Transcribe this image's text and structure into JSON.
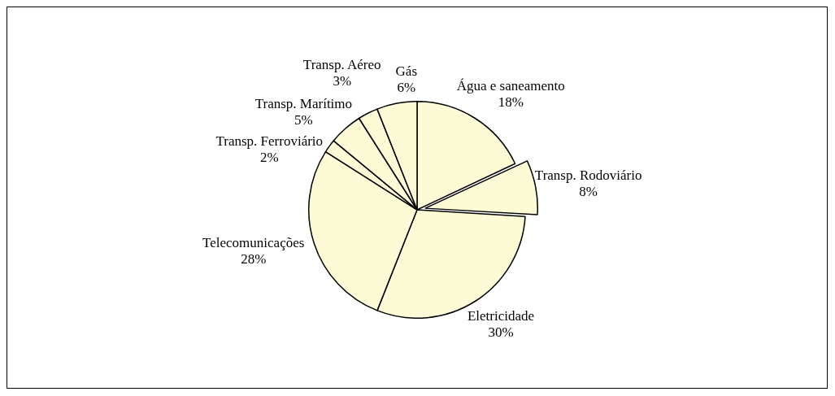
{
  "chart_data": {
    "type": "pie",
    "categories": [
      "Água e saneamento",
      "Transp. Rodoviário",
      "Eletricidade",
      "Telecomunicações",
      "Transp. Ferroviário",
      "Transp. Marítimo",
      "Transp. Aéreo",
      "Gás"
    ],
    "values": [
      18,
      8,
      30,
      28,
      2,
      5,
      3,
      6
    ],
    "value_labels": [
      "18%",
      "8%",
      "30%",
      "28%",
      "2%",
      "5%",
      "3%",
      "6%"
    ],
    "colors": [
      "#fdfbd6",
      "#fdfbd6",
      "#fdfbd6",
      "#fdfbd6",
      "#fdfbd6",
      "#fdfbd6",
      "#fdfbd6",
      "#fdfbd6"
    ]
  }
}
